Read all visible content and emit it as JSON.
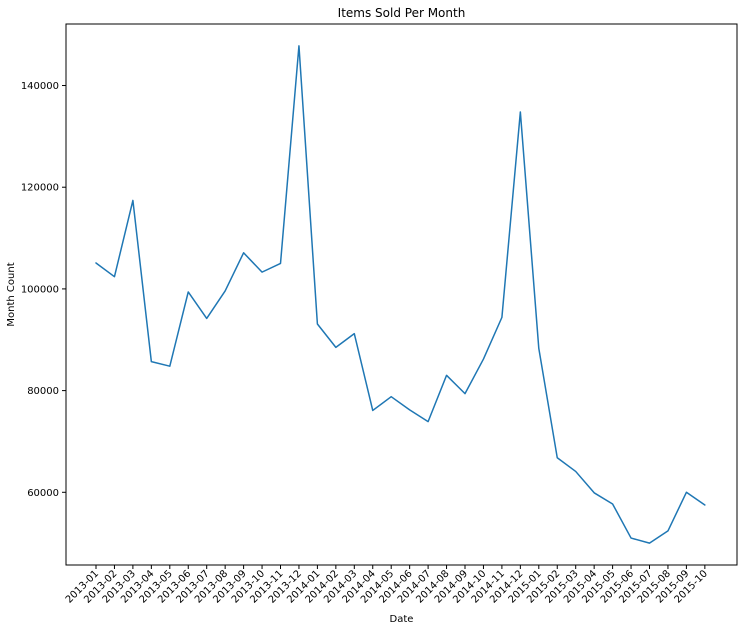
{
  "chart_data": {
    "type": "line",
    "title": "Items Sold Per Month",
    "xlabel": "Date",
    "ylabel": "Month Count",
    "categories": [
      "2013-01",
      "2013-02",
      "2013-03",
      "2013-04",
      "2013-05",
      "2013-06",
      "2013-07",
      "2013-08",
      "2013-09",
      "2013-10",
      "2013-11",
      "2013-12",
      "2014-01",
      "2014-02",
      "2014-03",
      "2014-04",
      "2014-05",
      "2014-06",
      "2014-07",
      "2014-08",
      "2014-09",
      "2014-10",
      "2014-11",
      "2014-12",
      "2015-01",
      "2015-02",
      "2015-03",
      "2015-04",
      "2015-05",
      "2015-06",
      "2015-07",
      "2015-08",
      "2015-09",
      "2015-10"
    ],
    "series": [
      {
        "values": [
          105100,
          102400,
          117400,
          85700,
          84800,
          99400,
          94200,
          99600,
          107100,
          103300,
          105000,
          147800,
          93100,
          88500,
          91200,
          76100,
          78800,
          76200,
          73900,
          83000,
          79400,
          86200,
          94400,
          134800,
          88300,
          66800,
          64100,
          59900,
          57700,
          51000,
          50000,
          52400,
          60000,
          57500
        ],
        "color": "#1f77b4"
      }
    ],
    "ylim": [
      45700,
      152100
    ],
    "yticks": [
      60000,
      80000,
      100000,
      120000,
      140000
    ],
    "ytick_labels": [
      "60000",
      "80000",
      "100000",
      "120000",
      "140000"
    ],
    "xtick_rotation": 45,
    "grid": false,
    "legend": "none"
  }
}
